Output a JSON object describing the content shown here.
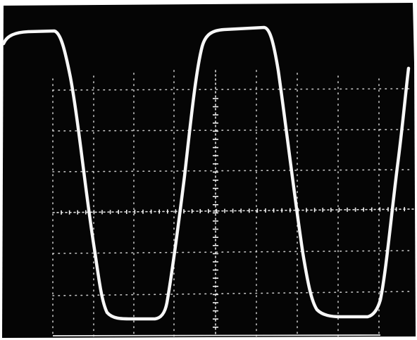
{
  "photo": {
    "background_color": "#050505",
    "border_color": "#ffffff",
    "trace_color": "#f7f7f7",
    "graticule_color": "#e9e9e9"
  },
  "graticule": {
    "vertical_divisions": 10,
    "horizontal_divisions": 8
  },
  "waveform": {
    "shape": "trapezoidal square wave",
    "cycles_visible": 2.5
  }
}
